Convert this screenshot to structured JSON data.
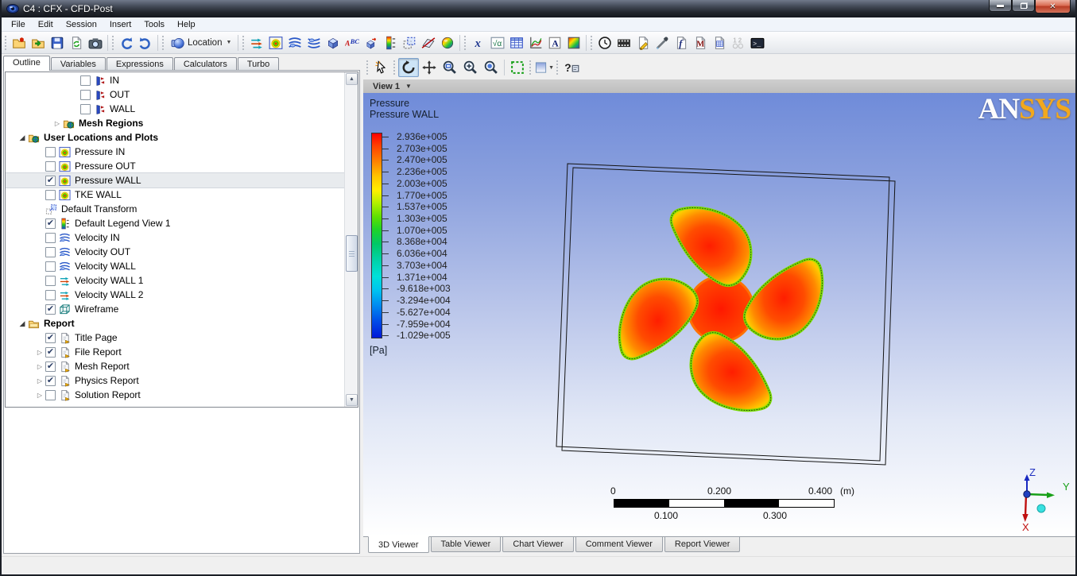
{
  "window": {
    "title": "C4 : CFX - CFD-Post"
  },
  "menubar": {
    "items": [
      "File",
      "Edit",
      "Session",
      "Insert",
      "Tools",
      "Help"
    ]
  },
  "toolbar": {
    "groups": [
      {
        "items": [
          {
            "name": "load-results-button",
            "icon": "folder-new"
          },
          {
            "name": "open-state-button",
            "icon": "folder-open"
          },
          {
            "name": "save-state-button",
            "icon": "disk"
          },
          {
            "name": "refresh-button",
            "icon": "page-refresh"
          },
          {
            "name": "snapshot-button",
            "icon": "camera"
          }
        ]
      },
      {
        "items": [
          {
            "name": "undo-button",
            "icon": "undo"
          },
          {
            "name": "redo-button",
            "icon": "redo"
          }
        ]
      },
      {
        "items": [
          {
            "name": "location-dropdown",
            "icon": "sphere",
            "label": "Location",
            "caret": true
          }
        ]
      },
      {
        "items": [
          {
            "name": "vector-button",
            "icon": "vectors"
          },
          {
            "name": "contour-button",
            "icon": "contour"
          },
          {
            "name": "streamline-button",
            "icon": "waves"
          },
          {
            "name": "particle-track-button",
            "icon": "waves2"
          },
          {
            "name": "volume-rendering-button",
            "icon": "cube"
          },
          {
            "name": "text-button",
            "icon": "abc"
          },
          {
            "name": "coord-frame-button",
            "icon": "cube-arrow"
          },
          {
            "name": "legend-button",
            "icon": "legendbar"
          },
          {
            "name": "instance-transform-button",
            "icon": "dashedbox"
          },
          {
            "name": "clip-plane-button",
            "icon": "clip"
          },
          {
            "name": "color-map-button",
            "icon": "colorsphere"
          }
        ]
      },
      {
        "items": [
          {
            "name": "expressions-button",
            "icon": "xvar"
          },
          {
            "name": "variables-button",
            "icon": "sqrt-alpha"
          },
          {
            "name": "table-button",
            "icon": "grid"
          },
          {
            "name": "chart-button",
            "icon": "chartline"
          },
          {
            "name": "comment-button",
            "icon": "a-box"
          },
          {
            "name": "figure-button",
            "icon": "colormap"
          }
        ]
      },
      {
        "items": [
          {
            "name": "timestep-selector-button",
            "icon": "clock"
          },
          {
            "name": "animation-button",
            "icon": "film"
          },
          {
            "name": "report-editor-button",
            "icon": "page-pencil"
          },
          {
            "name": "probe-button",
            "icon": "pipette"
          },
          {
            "name": "function-calculator-button",
            "icon": "f-page"
          },
          {
            "name": "macro-calculator-button",
            "icon": "m-page"
          },
          {
            "name": "mesh-calculator-button",
            "icon": "grid-page"
          },
          {
            "name": "case-comparison-button",
            "icon": "one-two",
            "disabled": true
          },
          {
            "name": "command-editor-button",
            "icon": "cmd"
          }
        ]
      }
    ]
  },
  "sidebar": {
    "tabs": [
      {
        "label": "Outline",
        "active": true
      },
      {
        "label": "Variables",
        "active": false
      },
      {
        "label": "Expressions",
        "active": false
      },
      {
        "label": "Calculators",
        "active": false
      },
      {
        "label": "Turbo",
        "active": false
      }
    ],
    "tree": {
      "items": [
        {
          "level": 3,
          "check": "off",
          "icon": "boundary",
          "label": "IN"
        },
        {
          "level": 3,
          "check": "off",
          "icon": "boundary",
          "label": "OUT"
        },
        {
          "level": 3,
          "check": "off",
          "icon": "boundary",
          "label": "WALL"
        },
        {
          "level": 2,
          "arrow": "collapsed",
          "icon": "folder-globe",
          "label": "Mesh Regions",
          "bold": true
        },
        {
          "level": 0,
          "arrow": "expanded",
          "icon": "folder-globe",
          "label": "User Locations and Plots",
          "bold": true
        },
        {
          "level": 1,
          "check": "off",
          "icon": "contour",
          "label": "Pressure IN"
        },
        {
          "level": 1,
          "check": "off",
          "icon": "contour",
          "label": "Pressure OUT"
        },
        {
          "level": 1,
          "check": "on",
          "icon": "contour",
          "label": "Pressure WALL",
          "selected": true
        },
        {
          "level": 1,
          "check": "off",
          "icon": "contour",
          "label": "TKE WALL"
        },
        {
          "level": 1,
          "icon": "transform",
          "label": "Default Transform"
        },
        {
          "level": 1,
          "check": "on",
          "icon": "legendbar",
          "label": "Default Legend View 1"
        },
        {
          "level": 1,
          "check": "off",
          "icon": "waves",
          "label": "Velocity IN"
        },
        {
          "level": 1,
          "check": "off",
          "icon": "waves",
          "label": "Velocity OUT"
        },
        {
          "level": 1,
          "check": "off",
          "icon": "waves",
          "label": "Velocity WALL"
        },
        {
          "level": 1,
          "check": "off",
          "icon": "vectors",
          "label": "Velocity WALL 1"
        },
        {
          "level": 1,
          "check": "off",
          "icon": "vectors",
          "label": "Velocity WALL 2"
        },
        {
          "level": 1,
          "check": "on",
          "icon": "wireframe",
          "label": "Wireframe"
        },
        {
          "level": 0,
          "arrow": "expanded",
          "icon": "folder",
          "label": "Report",
          "bold": true
        },
        {
          "level": 1,
          "check": "on",
          "icon": "page-arrow",
          "label": "Title Page"
        },
        {
          "level": 1,
          "arrow": "collapsed",
          "check": "on",
          "icon": "page-arrow",
          "label": "File Report"
        },
        {
          "level": 1,
          "arrow": "collapsed",
          "check": "on",
          "icon": "page-arrow",
          "label": "Mesh Report"
        },
        {
          "level": 1,
          "arrow": "collapsed",
          "check": "on",
          "icon": "page-arrow",
          "label": "Physics Report"
        },
        {
          "level": 1,
          "arrow": "collapsed",
          "check": "off",
          "icon": "page-arrow",
          "label": "Solution Report"
        }
      ]
    }
  },
  "viewer": {
    "toolbar": [
      {
        "name": "select-tool",
        "icon": "cursor"
      },
      {
        "name": "rotate-tool",
        "icon": "rotate",
        "pressed": true
      },
      {
        "name": "pan-tool",
        "icon": "pan"
      },
      {
        "name": "zoom-box-tool",
        "icon": "magnifier-box"
      },
      {
        "name": "zoom-in-tool",
        "icon": "magnifier-plus"
      },
      {
        "name": "fit-view-tool",
        "icon": "magnifier-fit"
      },
      {
        "name": "box-select-tool",
        "icon": "greenbox"
      },
      {
        "name": "background-dropdown",
        "icon": "swatch",
        "caret": true
      },
      {
        "name": "viewer-help-button",
        "icon": "help"
      }
    ],
    "view_label": "View 1",
    "tabs": [
      {
        "label": "3D Viewer",
        "active": true
      },
      {
        "label": "Table Viewer",
        "active": false
      },
      {
        "label": "Chart Viewer",
        "active": false
      },
      {
        "label": "Comment Viewer",
        "active": false
      },
      {
        "label": "Report Viewer",
        "active": false
      }
    ]
  },
  "viewport": {
    "legend": {
      "title_line1": "Pressure",
      "title_line2": "Pressure WALL",
      "values": [
        "2.936e+005",
        "2.703e+005",
        "2.470e+005",
        "2.236e+005",
        "2.003e+005",
        "1.770e+005",
        "1.537e+005",
        "1.303e+005",
        "1.070e+005",
        "8.368e+004",
        "6.036e+004",
        "3.703e+004",
        "1.371e+004",
        "-9.618e+003",
        "-3.294e+004",
        "-5.627e+004",
        "-7.959e+004",
        "-1.029e+005"
      ],
      "unit": "[Pa]"
    },
    "logo": {
      "part1": "AN",
      "part2": "SYS"
    },
    "ruler": {
      "top_labels": [
        "0",
        "0.200",
        "0.400"
      ],
      "unit": "(m)",
      "bottom_labels": [
        "0.100",
        "0.300"
      ]
    },
    "triad": {
      "x": "X",
      "y": "Y",
      "z": "Z"
    },
    "colors": {
      "contour_max": "#ff0000",
      "contour_min": "#0018d8",
      "background_top": "#6f8bd9",
      "background_bottom": "#ffffff",
      "logo_gold": "#f2a81d"
    }
  }
}
